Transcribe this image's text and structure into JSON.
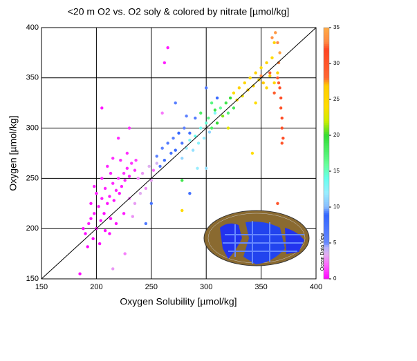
{
  "chart_data": {
    "type": "scatter",
    "title": "<20 m O2 vs. O2 soly & colored by nitrate [µmol/kg]",
    "x_label": "Oxygen Solubility [µmol/kg]",
    "y_label": "Oxygen [µmol/kg]",
    "watermark": "Ocean Data View",
    "xlim": [
      150,
      400
    ],
    "ylim": [
      150,
      400
    ],
    "xticks": [
      150,
      200,
      250,
      300,
      350,
      400
    ],
    "yticks": [
      150,
      200,
      250,
      300,
      350,
      400
    ],
    "grid": true,
    "identity_line": true,
    "clim": [
      0,
      35
    ],
    "colorbar_ticks": [
      0,
      5,
      10,
      15,
      20,
      25,
      30,
      35
    ],
    "colormap": [
      {
        "value": 0,
        "color": "#ff00ff"
      },
      {
        "value": 2,
        "color": "#ff66ff"
      },
      {
        "value": 3.5,
        "color": "#e0b0f0"
      },
      {
        "value": 4.5,
        "color": "#b0b0ff"
      },
      {
        "value": 5,
        "color": "#6688ff"
      },
      {
        "value": 9,
        "color": "#3366ff"
      },
      {
        "value": 10,
        "color": "#88bbff"
      },
      {
        "value": 12,
        "color": "#99eeff"
      },
      {
        "value": 14,
        "color": "#66ffee"
      },
      {
        "value": 16,
        "color": "#66ff99"
      },
      {
        "value": 20,
        "color": "#33dd33"
      },
      {
        "value": 22,
        "color": "#ccee00"
      },
      {
        "value": 24,
        "color": "#ffdd00"
      },
      {
        "value": 27,
        "color": "#ffcc00"
      },
      {
        "value": 28,
        "color": "#ff6633"
      },
      {
        "value": 32,
        "color": "#ff4422"
      },
      {
        "value": 33,
        "color": "#ff8844"
      },
      {
        "value": 35,
        "color": "#ffaa44"
      }
    ],
    "x": [
      190,
      193,
      195,
      197,
      198,
      200,
      202,
      204,
      205,
      207,
      208,
      210,
      212,
      213,
      215,
      216,
      218,
      220,
      221,
      223,
      225,
      226,
      228,
      230,
      232,
      235,
      195,
      200,
      205,
      210,
      215,
      192,
      188,
      220,
      230,
      212,
      218,
      225,
      203,
      208,
      228,
      236,
      198,
      213,
      222,
      185,
      205,
      262,
      265,
      238,
      242,
      245,
      248,
      250,
      252,
      255,
      230,
      235,
      240,
      226,
      215,
      260,
      233,
      255,
      258,
      260,
      262,
      265,
      268,
      270,
      272,
      275,
      278,
      280,
      285,
      290,
      282,
      300,
      272,
      310,
      250,
      245,
      285,
      278,
      282,
      285,
      288,
      290,
      293,
      295,
      298,
      300,
      303,
      292,
      308,
      300,
      302,
      305,
      308,
      310,
      313,
      315,
      318,
      320,
      322,
      325,
      305,
      295,
      278,
      325,
      328,
      330,
      333,
      335,
      338,
      340,
      343,
      345,
      348,
      350,
      352,
      355,
      358,
      360,
      362,
      365,
      355,
      345,
      320,
      342,
      278,
      362,
      365,
      367,
      368,
      368,
      369,
      369,
      370,
      369,
      366,
      362,
      358,
      365,
      363,
      365,
      367,
      360,
      366,
      350
    ],
    "y": [
      195,
      205,
      210,
      190,
      215,
      200,
      222,
      208,
      230,
      215,
      240,
      225,
      232,
      210,
      245,
      228,
      238,
      250,
      235,
      242,
      255,
      248,
      260,
      252,
      265,
      258,
      225,
      235,
      250,
      262,
      270,
      182,
      200,
      290,
      300,
      195,
      205,
      215,
      185,
      198,
      275,
      268,
      242,
      255,
      268,
      155,
      320,
      365,
      380,
      250,
      255,
      240,
      262,
      248,
      258,
      265,
      230,
      225,
      235,
      175,
      160,
      315,
      212,
      272,
      262,
      280,
      268,
      285,
      275,
      290,
      278,
      295,
      285,
      300,
      295,
      310,
      312,
      340,
      325,
      330,
      225,
      205,
      235,
      270,
      280,
      288,
      278,
      292,
      285,
      300,
      290,
      305,
      296,
      260,
      315,
      260,
      310,
      300,
      318,
      305,
      320,
      312,
      325,
      315,
      330,
      320,
      325,
      315,
      248,
      335,
      328,
      340,
      332,
      345,
      338,
      350,
      342,
      355,
      348,
      360,
      345,
      365,
      352,
      370,
      345,
      355,
      340,
      325,
      300,
      275,
      218,
      385,
      350,
      340,
      330,
      320,
      310,
      300,
      290,
      285,
      345,
      335,
      355,
      225,
      395,
      385,
      375,
      390,
      365,
      352
    ],
    "c": [
      0.2,
      0.5,
      0.3,
      0.1,
      0.4,
      0.2,
      0.6,
      0.3,
      0.5,
      0.2,
      0.7,
      0.4,
      0.5,
      0.2,
      0.8,
      0.3,
      0.6,
      0.9,
      0.4,
      0.5,
      1,
      0.7,
      0.8,
      0.6,
      1.1,
      0.9,
      0.3,
      0.4,
      0.6,
      0.7,
      0.9,
      0.1,
      0.2,
      0.8,
      1,
      0.2,
      0.3,
      0.5,
      0.1,
      0.2,
      0.9,
      1.2,
      0.5,
      0.6,
      0.8,
      0.1,
      0.5,
      0.6,
      0.5,
      2.5,
      3,
      2.8,
      3.5,
      3.2,
      2.2,
      3.8,
      2.6,
      3.1,
      3.4,
      2.5,
      3,
      2.4,
      2.9,
      6,
      7,
      5.5,
      8,
      6.5,
      7.5,
      6,
      8.5,
      9,
      7,
      5.5,
      8,
      6.5,
      5.8,
      7,
      6.2,
      8.5,
      7.5,
      6.8,
      8,
      11,
      12,
      13,
      11.5,
      14,
      12.5,
      13.5,
      12,
      14.5,
      11,
      12,
      13,
      11.5,
      17,
      18,
      19,
      20,
      16,
      21,
      19,
      17.5,
      20,
      18.5,
      17,
      18,
      19,
      24,
      25,
      26,
      23.5,
      25,
      26.5,
      24.5,
      25.5,
      26,
      25,
      24,
      27,
      25.5,
      26,
      24.5,
      25,
      26,
      25,
      24,
      23,
      24,
      24.5,
      26,
      30,
      30.5,
      31,
      30,
      31,
      30.5,
      31,
      30,
      29.5,
      29,
      29,
      30,
      34,
      33,
      34.5,
      33.5,
      33,
      33
    ]
  }
}
